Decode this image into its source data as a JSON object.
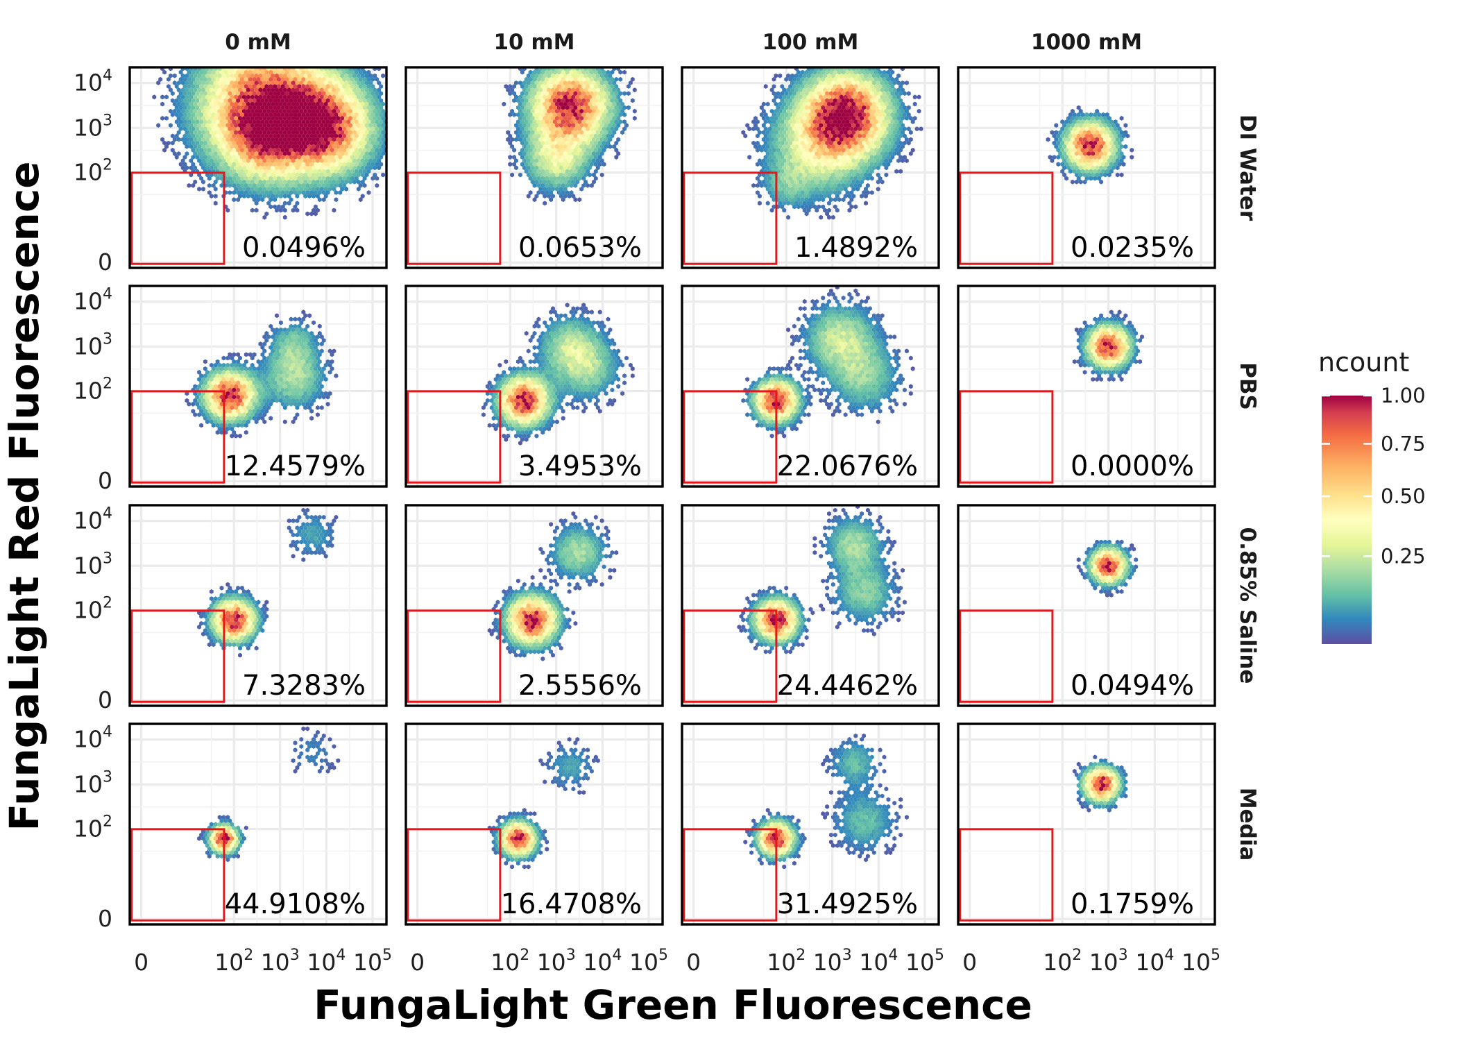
{
  "chart_data": {
    "type": "hexbin",
    "title": "",
    "xlabel": "FungaLight Green Fluorescence",
    "ylabel": "FungaLight Red Fluorescence",
    "x_scale": "pseudo-log",
    "y_scale": "pseudo-log",
    "xlim": [
      0,
      100000
    ],
    "ylim": [
      0,
      20000
    ],
    "x_ticks": [
      {
        "label": "0",
        "value": 0
      },
      {
        "label": "10",
        "sup": "2",
        "value": 100
      },
      {
        "label": "10",
        "sup": "3",
        "value": 1000
      },
      {
        "label": "10",
        "sup": "4",
        "value": 10000
      },
      {
        "label": "10",
        "sup": "5",
        "value": 100000
      }
    ],
    "y_ticks": [
      {
        "label": "0",
        "value": 0
      },
      {
        "label": "10",
        "sup": "2",
        "value": 100
      },
      {
        "label": "10",
        "sup": "3",
        "value": 1000
      },
      {
        "label": "10",
        "sup": "4",
        "value": 10000
      }
    ],
    "grid": true,
    "columns": [
      "0 mM",
      "10 mM",
      "100 mM",
      "1000 mM"
    ],
    "rows": [
      "DI Water",
      "PBS",
      "0.85% Saline",
      "Media"
    ],
    "gate": {
      "x": [
        0,
        80
      ],
      "y": [
        0,
        80
      ],
      "color": "#e8161b"
    },
    "percentages": [
      [
        "0.0496%",
        "0.0653%",
        "1.4892%",
        "0.0235%"
      ],
      [
        "12.4579%",
        "3.4953%",
        "22.0676%",
        "0.0000%"
      ],
      [
        "7.3283%",
        "2.5556%",
        "24.4462%",
        "0.0494%"
      ],
      [
        "44.9108%",
        "16.4708%",
        "31.4925%",
        "0.1759%"
      ]
    ],
    "legend": {
      "title": "ncount",
      "position": "right",
      "colorscale": "Spectral (reversed)",
      "ticks": [
        "1.00",
        "0.75",
        "0.50",
        "0.25"
      ],
      "tick_values": [
        1.0,
        0.75,
        0.5,
        0.25
      ]
    },
    "populations": [
      [
        {
          "clusters": [
            [
              500,
              3000,
              0.9,
              1.0
            ],
            [
              10000,
              1000,
              0.65,
              0.85
            ],
            [
              500,
              500,
              0.55,
              0.4
            ]
          ]
        },
        {
          "clusters": [
            [
              2000,
              3000,
              0.55,
              1.0
            ],
            [
              1000,
              200,
              0.45,
              0.4
            ]
          ]
        },
        {
          "clusters": [
            [
              2000,
              2000,
              0.6,
              1.0
            ],
            [
              500,
              400,
              0.7,
              0.4
            ],
            [
              100,
              50,
              0.35,
              0.15
            ]
          ]
        },
        {
          "clusters": [
            [
              400,
              400,
              0.35,
              1.0
            ]
          ]
        }
      ],
      [
        {
          "clusters": [
            [
              80,
              80,
              0.35,
              1.0
            ],
            [
              2000,
              1200,
              0.35,
              0.2
            ],
            [
              2000,
              200,
              0.45,
              0.3
            ]
          ]
        },
        {
          "clusters": [
            [
              200,
              60,
              0.35,
              1.0
            ],
            [
              2000,
              1000,
              0.45,
              0.3
            ],
            [
              5000,
              300,
              0.45,
              0.25
            ]
          ]
        },
        {
          "clusters": [
            [
              60,
              60,
              0.3,
              1.0
            ],
            [
              1500,
              1500,
              0.5,
              0.35
            ],
            [
              5000,
              200,
              0.5,
              0.25
            ]
          ]
        },
        {
          "clusters": [
            [
              1000,
              1000,
              0.3,
              1.0
            ]
          ]
        }
      ],
      [
        {
          "clusters": [
            [
              100,
              60,
              0.3,
              1.0
            ],
            [
              5000,
              5000,
              0.35,
              0.15
            ]
          ]
        },
        {
          "clusters": [
            [
              300,
              60,
              0.35,
              1.0
            ],
            [
              3000,
              2000,
              0.4,
              0.3
            ]
          ]
        },
        {
          "clusters": [
            [
              60,
              60,
              0.3,
              1.0
            ],
            [
              3000,
              3000,
              0.4,
              0.3
            ],
            [
              5000,
              250,
              0.45,
              0.25
            ]
          ]
        },
        {
          "clusters": [
            [
              1000,
              1000,
              0.25,
              1.0
            ]
          ]
        }
      ],
      [
        {
          "clusters": [
            [
              60,
              60,
              0.2,
              1.0
            ],
            [
              5000,
              5000,
              0.35,
              0.1
            ]
          ]
        },
        {
          "clusters": [
            [
              150,
              60,
              0.25,
              1.0
            ],
            [
              2000,
              2500,
              0.35,
              0.15
            ]
          ]
        },
        {
          "clusters": [
            [
              60,
              60,
              0.25,
              1.0
            ],
            [
              3000,
              3000,
              0.35,
              0.2
            ],
            [
              5000,
              150,
              0.45,
              0.2
            ]
          ]
        },
        {
          "clusters": [
            [
              700,
              1000,
              0.25,
              1.0
            ]
          ]
        }
      ]
    ]
  }
}
